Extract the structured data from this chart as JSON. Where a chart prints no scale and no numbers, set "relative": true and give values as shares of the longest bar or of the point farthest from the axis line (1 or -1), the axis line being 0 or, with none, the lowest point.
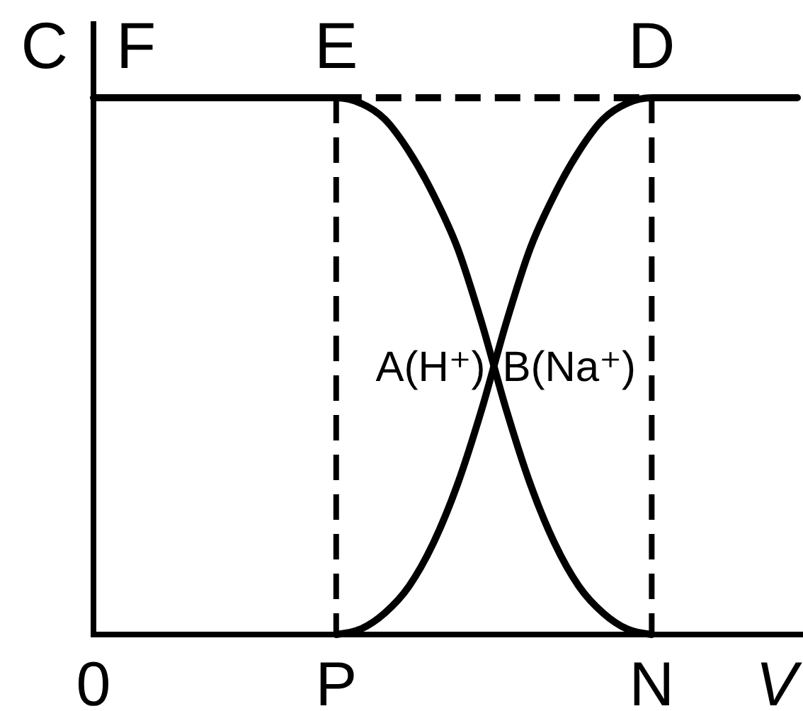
{
  "chart_data": {
    "type": "line",
    "relative": true,
    "xlabel": "V",
    "ylabel": "C",
    "line_style": "solid",
    "categories": [
      "0",
      null,
      null,
      null,
      null,
      null,
      null,
      null,
      null,
      null,
      "P",
      null,
      null,
      null,
      null,
      null,
      null,
      null,
      null,
      null,
      null,
      null,
      null,
      "N",
      null,
      null,
      null,
      null,
      null,
      null
    ],
    "series": [
      {
        "name": "A(H⁺)",
        "color": "#000000",
        "values": [
          1,
          1,
          1,
          1,
          1,
          1,
          1,
          1,
          1,
          1,
          1,
          0.99,
          0.96,
          0.9,
          0.82,
          0.72,
          0.58,
          0.42,
          0.28,
          0.17,
          0.09,
          0.04,
          0.01,
          0,
          null,
          null,
          null,
          null,
          null,
          null
        ]
      },
      {
        "name": "B(Na⁺)",
        "color": "#000000",
        "values": [
          null,
          null,
          null,
          null,
          null,
          null,
          null,
          null,
          null,
          null,
          0,
          0.01,
          0.04,
          0.09,
          0.17,
          0.28,
          0.42,
          0.58,
          0.72,
          0.82,
          0.9,
          0.96,
          0.99,
          1,
          1,
          1,
          1,
          1,
          1,
          1
        ]
      },
      {
        "color": "#000000",
        "line_style": "dashed",
        "values": [
          null,
          null,
          null,
          null,
          null,
          null,
          null,
          null,
          null,
          null,
          1,
          1,
          1,
          1,
          1,
          1,
          1,
          1,
          1,
          1,
          1,
          1,
          1,
          1,
          null,
          null,
          null,
          null,
          null,
          null
        ]
      }
    ],
    "ref_lines": [
      {
        "axis": "x",
        "value": "P",
        "line_style": "dashed"
      },
      {
        "axis": "x",
        "value": "N",
        "line_style": "dashed"
      }
    ],
    "annotations": [
      {
        "text": "F",
        "x": "0",
        "y": 1
      },
      {
        "text": "E",
        "x": "P",
        "y": 1
      },
      {
        "text": "D",
        "x": "N",
        "y": 1
      }
    ]
  }
}
